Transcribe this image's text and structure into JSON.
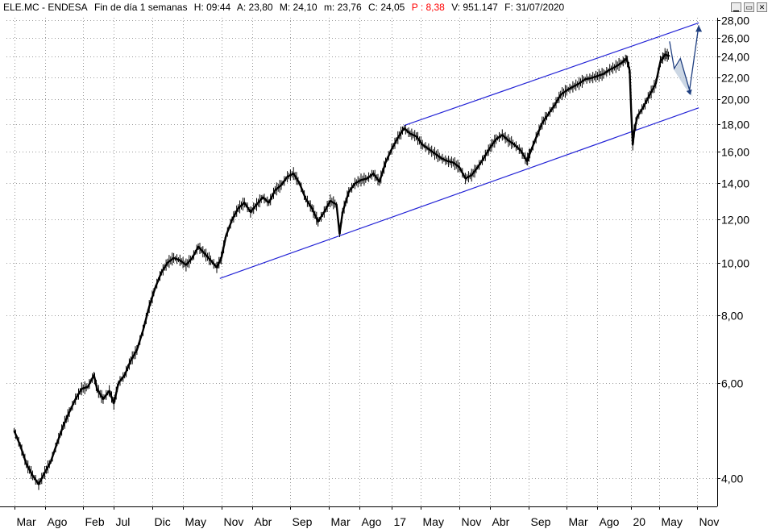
{
  "header": {
    "symbol": "ELE.MC - ENDESA",
    "timeframe": "Fin de día 1 semanas",
    "time": "H: 09:44",
    "open": "A: 23,80",
    "high": "M: 24,10",
    "low": "m: 23,76",
    "close": "C: 24,05",
    "perf": "P : 8,38",
    "volume": "V: 951.147",
    "date": "F: 31/07/2020"
  },
  "window_buttons": {
    "minimize": "▁",
    "restore": "▭",
    "close": "✕"
  },
  "colors": {
    "candle": "#000000",
    "channel": "#2323d6",
    "projection": "#1f3f80",
    "projection_fill": "#b7c6d8",
    "grid": "#9a9a9a",
    "perf_text": "#ff0000"
  },
  "chart_data": {
    "type": "line",
    "scale": "log",
    "y_ticks": [
      "4,00",
      "6,00",
      "8,00",
      "10,00",
      "12,00",
      "14,00",
      "16,00",
      "18,00",
      "20,00",
      "22,00",
      "24,00",
      "26,00",
      "28,00"
    ],
    "y_tick_values": [
      4,
      6,
      8,
      10,
      12,
      14,
      16,
      18,
      20,
      22,
      24,
      26,
      28
    ],
    "x_ticks": [
      "Mar",
      "Ago",
      "Feb",
      "Jul",
      "Dic",
      "May",
      "Nov",
      "Abr",
      "Sep",
      "Mar",
      "Ago",
      "17",
      "May",
      "Nov",
      "Abr",
      "Sep",
      "Mar",
      "Ago",
      "20",
      "May",
      "Nov"
    ],
    "x_tick_index": [
      0,
      20,
      45,
      65,
      90,
      110,
      135,
      155,
      180,
      205,
      225,
      246,
      265,
      290,
      310,
      335,
      360,
      380,
      402,
      420,
      445
    ],
    "x_range": [
      -5,
      458
    ],
    "ylim": [
      3.55,
      28.3
    ],
    "grid": true,
    "price_path": [
      [
        0,
        4.9
      ],
      [
        4,
        4.6
      ],
      [
        8,
        4.25
      ],
      [
        12,
        4.05
      ],
      [
        16,
        3.9
      ],
      [
        20,
        4.1
      ],
      [
        24,
        4.3
      ],
      [
        28,
        4.65
      ],
      [
        32,
        5.0
      ],
      [
        36,
        5.3
      ],
      [
        40,
        5.6
      ],
      [
        44,
        5.85
      ],
      [
        48,
        5.9
      ],
      [
        52,
        6.2
      ],
      [
        54,
        5.85
      ],
      [
        58,
        5.6
      ],
      [
        62,
        5.8
      ],
      [
        65,
        5.5
      ],
      [
        68,
        6.0
      ],
      [
        72,
        6.2
      ],
      [
        76,
        6.6
      ],
      [
        80,
        6.9
      ],
      [
        84,
        7.5
      ],
      [
        88,
        8.3
      ],
      [
        92,
        9.0
      ],
      [
        96,
        9.6
      ],
      [
        100,
        10.0
      ],
      [
        104,
        10.2
      ],
      [
        108,
        10.1
      ],
      [
        112,
        9.9
      ],
      [
        116,
        10.2
      ],
      [
        120,
        10.7
      ],
      [
        124,
        10.4
      ],
      [
        128,
        10.1
      ],
      [
        132,
        9.8
      ],
      [
        135,
        10.2
      ],
      [
        138,
        11.2
      ],
      [
        142,
        12.0
      ],
      [
        146,
        12.6
      ],
      [
        150,
        12.9
      ],
      [
        154,
        12.4
      ],
      [
        158,
        12.8
      ],
      [
        162,
        13.2
      ],
      [
        166,
        12.9
      ],
      [
        170,
        13.6
      ],
      [
        174,
        13.9
      ],
      [
        178,
        14.4
      ],
      [
        182,
        14.6
      ],
      [
        186,
        14.0
      ],
      [
        190,
        13.1
      ],
      [
        194,
        12.6
      ],
      [
        198,
        11.9
      ],
      [
        202,
        12.4
      ],
      [
        206,
        13.0
      ],
      [
        210,
        12.8
      ],
      [
        212,
        11.3
      ],
      [
        214,
        12.4
      ],
      [
        218,
        13.5
      ],
      [
        222,
        14.0
      ],
      [
        226,
        14.2
      ],
      [
        230,
        14.3
      ],
      [
        234,
        14.6
      ],
      [
        238,
        14.1
      ],
      [
        242,
        15.3
      ],
      [
        246,
        16.2
      ],
      [
        250,
        17.0
      ],
      [
        254,
        17.7
      ],
      [
        258,
        17.3
      ],
      [
        262,
        17.1
      ],
      [
        266,
        16.5
      ],
      [
        270,
        16.2
      ],
      [
        274,
        15.9
      ],
      [
        278,
        15.6
      ],
      [
        282,
        15.4
      ],
      [
        286,
        15.3
      ],
      [
        290,
        15.0
      ],
      [
        294,
        14.3
      ],
      [
        298,
        14.5
      ],
      [
        302,
        15.0
      ],
      [
        306,
        15.6
      ],
      [
        310,
        16.3
      ],
      [
        314,
        16.9
      ],
      [
        318,
        17.2
      ],
      [
        322,
        16.8
      ],
      [
        326,
        16.5
      ],
      [
        330,
        16.1
      ],
      [
        334,
        15.4
      ],
      [
        336,
        15.9
      ],
      [
        340,
        17.0
      ],
      [
        344,
        18.1
      ],
      [
        348,
        18.8
      ],
      [
        352,
        19.5
      ],
      [
        356,
        20.4
      ],
      [
        360,
        20.8
      ],
      [
        364,
        21.1
      ],
      [
        368,
        21.4
      ],
      [
        372,
        21.8
      ],
      [
        376,
        21.9
      ],
      [
        380,
        22.1
      ],
      [
        384,
        22.3
      ],
      [
        388,
        22.7
      ],
      [
        392,
        23.0
      ],
      [
        396,
        23.4
      ],
      [
        399,
        23.8
      ],
      [
        401,
        22.6
      ],
      [
        402,
        19.0
      ],
      [
        403,
        16.5
      ],
      [
        404,
        17.5
      ],
      [
        406,
        18.6
      ],
      [
        410,
        19.4
      ],
      [
        414,
        20.4
      ],
      [
        418,
        21.4
      ],
      [
        421,
        23.5
      ],
      [
        424,
        24.2
      ],
      [
        427,
        24.05
      ]
    ],
    "channel_upper": [
      [
        254,
        17.9
      ],
      [
        446,
        27.7
      ]
    ],
    "channel_lower": [
      [
        134,
        9.35
      ],
      [
        446,
        19.3
      ]
    ],
    "projection": [
      [
        427,
        25.6
      ],
      [
        430,
        22.8
      ],
      [
        434,
        23.8
      ],
      [
        440,
        20.8
      ],
      [
        446,
        27.4
      ]
    ]
  }
}
